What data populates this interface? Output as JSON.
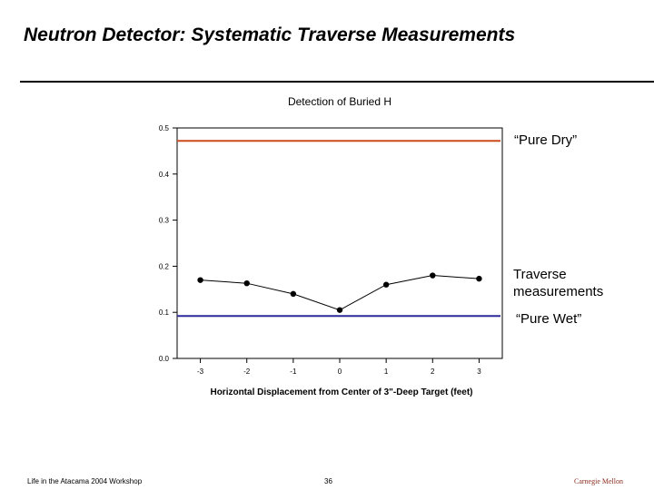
{
  "slide": {
    "title": "Neutron Detector: Systematic Traverse Measurements"
  },
  "footer": {
    "left": "Life in the Atacama 2004 Workshop",
    "center": "36",
    "right": "Carnegie Mellon"
  },
  "annotations": {
    "pure_dry": "“Pure Dry”",
    "traverse_line1": "Traverse",
    "traverse_line2": "measurements",
    "pure_wet": "“Pure Wet”"
  },
  "chart_data": {
    "type": "line",
    "title": "Detection of Buried H",
    "xlabel": "Horizontal Displacement from Center of 3\"-Deep Target (feet)",
    "ylabel": "",
    "xlim": [
      -3.5,
      3.5
    ],
    "ylim": [
      0.0,
      0.5
    ],
    "x_ticks": [
      -3,
      -2,
      -1,
      0,
      1,
      2,
      3
    ],
    "y_ticks": [
      0.0,
      0.1,
      0.2,
      0.3,
      0.4,
      0.5
    ],
    "grid": false,
    "series": [
      {
        "x": [
          -3,
          -2,
          -1,
          0,
          1,
          2,
          3
        ],
        "values": [
          0.17,
          0.163,
          0.14,
          0.105,
          0.16,
          0.18,
          0.173
        ],
        "color": "#000000",
        "marker": "circle"
      }
    ],
    "reference_lines": [
      {
        "y": 0.472,
        "color": "#cc4a1a"
      },
      {
        "y": 0.092,
        "color": "#2a2a9a"
      }
    ]
  }
}
